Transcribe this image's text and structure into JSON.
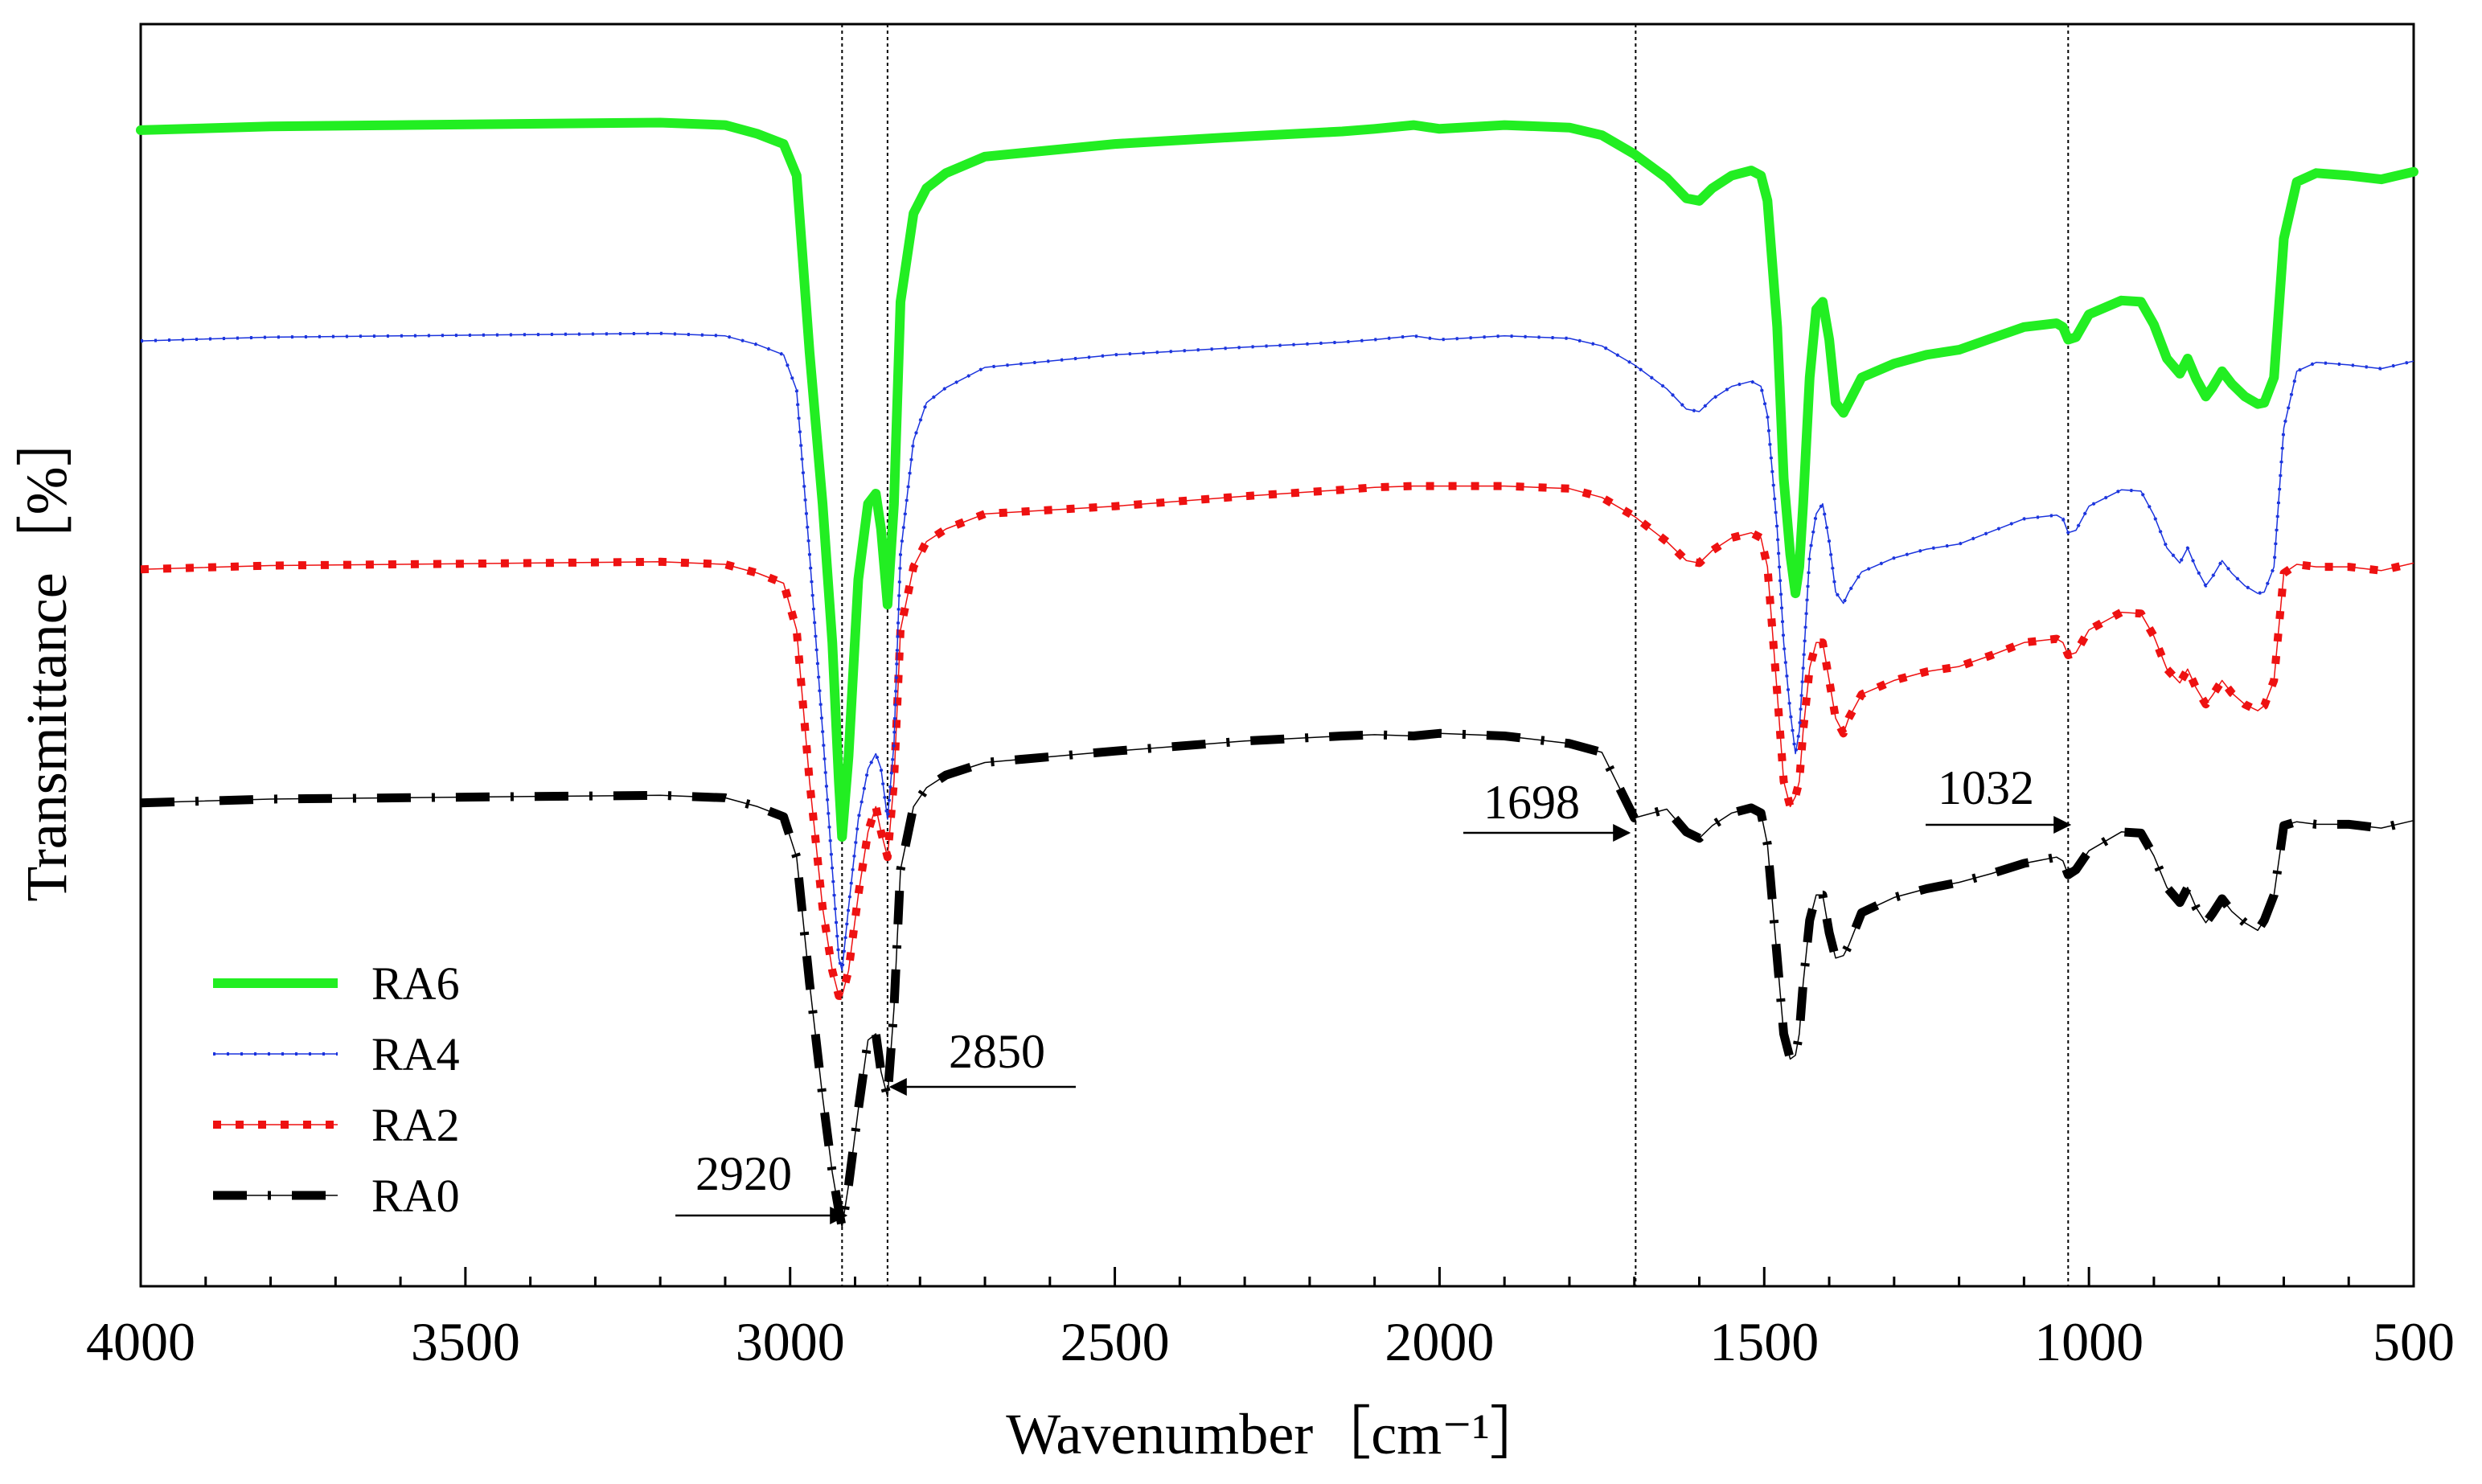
{
  "chart_data": {
    "type": "line",
    "title": "",
    "xlabel": "Wavenumber［cm⁻¹］",
    "ylabel": "Transmittance［%］",
    "xlim": [
      4000,
      500
    ],
    "x_reversed": true,
    "ylim": [
      0,
      1
    ],
    "y_ticks_labeled": false,
    "x_ticks": [
      4000,
      3500,
      3000,
      2500,
      2000,
      1500,
      1000,
      500
    ],
    "x_tick_labels": [
      "4000",
      "3500",
      "3000",
      "2500",
      "2000",
      "1500",
      "1000",
      "500"
    ],
    "grid": false,
    "legend_position": "bottom-left",
    "series": [
      {
        "name": "RA6",
        "color": "#22ee22",
        "style": "solid",
        "x": [
          4000,
          3800,
          3600,
          3400,
          3200,
          3100,
          3050,
          3010,
          2990,
          2970,
          2950,
          2935,
          2925,
          2920,
          2910,
          2895,
          2880,
          2868,
          2860,
          2850,
          2840,
          2830,
          2810,
          2790,
          2760,
          2700,
          2500,
          2300,
          2150,
          2100,
          2040,
          2000,
          1900,
          1800,
          1750,
          1700,
          1650,
          1620,
          1600,
          1580,
          1550,
          1520,
          1505,
          1495,
          1480,
          1470,
          1460,
          1452,
          1446,
          1440,
          1430,
          1420,
          1410,
          1400,
          1390,
          1378,
          1370,
          1350,
          1300,
          1250,
          1200,
          1150,
          1100,
          1050,
          1040,
          1032,
          1020,
          1000,
          950,
          920,
          900,
          880,
          860,
          848,
          835,
          820,
          810,
          795,
          780,
          760,
          740,
          730,
          715,
          700,
          680,
          650,
          600,
          550,
          500
        ],
        "y": [
          0.916,
          0.919,
          0.92,
          0.921,
          0.922,
          0.92,
          0.913,
          0.905,
          0.88,
          0.74,
          0.62,
          0.51,
          0.4,
          0.356,
          0.42,
          0.56,
          0.62,
          0.628,
          0.6,
          0.54,
          0.62,
          0.78,
          0.85,
          0.87,
          0.882,
          0.895,
          0.905,
          0.911,
          0.915,
          0.917,
          0.92,
          0.917,
          0.92,
          0.918,
          0.912,
          0.897,
          0.878,
          0.862,
          0.86,
          0.87,
          0.88,
          0.884,
          0.88,
          0.86,
          0.76,
          0.64,
          0.58,
          0.549,
          0.57,
          0.62,
          0.72,
          0.774,
          0.78,
          0.75,
          0.7,
          0.692,
          0.7,
          0.72,
          0.731,
          0.738,
          0.742,
          0.751,
          0.76,
          0.763,
          0.76,
          0.75,
          0.752,
          0.77,
          0.781,
          0.78,
          0.762,
          0.735,
          0.723,
          0.735,
          0.719,
          0.705,
          0.712,
          0.725,
          0.715,
          0.705,
          0.699,
          0.7,
          0.72,
          0.83,
          0.875,
          0.882,
          0.88,
          0.877,
          0.883
        ]
      },
      {
        "name": "RA4",
        "color": "#1a33dd",
        "style": "dotted-tick",
        "x": [
          4000,
          3800,
          3600,
          3400,
          3200,
          3100,
          3050,
          3010,
          2990,
          2970,
          2950,
          2935,
          2925,
          2920,
          2910,
          2895,
          2880,
          2868,
          2860,
          2850,
          2840,
          2830,
          2810,
          2790,
          2760,
          2700,
          2500,
          2300,
          2150,
          2100,
          2040,
          2000,
          1900,
          1800,
          1750,
          1700,
          1650,
          1620,
          1600,
          1580,
          1550,
          1520,
          1505,
          1495,
          1480,
          1470,
          1460,
          1452,
          1446,
          1440,
          1430,
          1420,
          1410,
          1400,
          1390,
          1378,
          1370,
          1350,
          1300,
          1250,
          1200,
          1150,
          1100,
          1050,
          1040,
          1032,
          1020,
          1000,
          950,
          920,
          900,
          880,
          860,
          848,
          835,
          820,
          810,
          795,
          780,
          760,
          740,
          730,
          715,
          700,
          680,
          650,
          600,
          550,
          500
        ],
        "y": [
          0.749,
          0.752,
          0.753,
          0.754,
          0.755,
          0.753,
          0.746,
          0.738,
          0.71,
          0.58,
          0.44,
          0.33,
          0.26,
          0.25,
          0.3,
          0.37,
          0.41,
          0.422,
          0.41,
          0.37,
          0.43,
          0.58,
          0.67,
          0.7,
          0.712,
          0.728,
          0.738,
          0.744,
          0.748,
          0.75,
          0.753,
          0.75,
          0.753,
          0.751,
          0.745,
          0.73,
          0.711,
          0.695,
          0.693,
          0.703,
          0.713,
          0.717,
          0.713,
          0.69,
          0.6,
          0.51,
          0.455,
          0.422,
          0.44,
          0.49,
          0.58,
          0.612,
          0.62,
          0.59,
          0.55,
          0.541,
          0.55,
          0.566,
          0.577,
          0.584,
          0.588,
          0.598,
          0.608,
          0.611,
          0.608,
          0.597,
          0.599,
          0.618,
          0.631,
          0.63,
          0.611,
          0.585,
          0.573,
          0.585,
          0.569,
          0.555,
          0.562,
          0.575,
          0.565,
          0.555,
          0.549,
          0.55,
          0.57,
          0.68,
          0.725,
          0.732,
          0.73,
          0.727,
          0.733
        ]
      },
      {
        "name": "RA2",
        "color": "#ee1111",
        "style": "square-dot",
        "x": [
          4000,
          3800,
          3600,
          3400,
          3200,
          3100,
          3050,
          3010,
          2990,
          2970,
          2950,
          2935,
          2925,
          2920,
          2910,
          2895,
          2880,
          2868,
          2860,
          2850,
          2840,
          2830,
          2810,
          2790,
          2760,
          2700,
          2500,
          2300,
          2150,
          2100,
          2040,
          2000,
          1900,
          1800,
          1750,
          1700,
          1650,
          1620,
          1600,
          1580,
          1550,
          1520,
          1505,
          1495,
          1480,
          1470,
          1460,
          1452,
          1446,
          1440,
          1430,
          1420,
          1410,
          1400,
          1390,
          1378,
          1370,
          1350,
          1300,
          1250,
          1200,
          1150,
          1100,
          1050,
          1040,
          1032,
          1020,
          1000,
          950,
          920,
          900,
          880,
          860,
          848,
          835,
          820,
          810,
          795,
          780,
          760,
          740,
          730,
          715,
          700,
          680,
          650,
          600,
          550,
          500
        ],
        "y": [
          0.568,
          0.571,
          0.572,
          0.573,
          0.574,
          0.572,
          0.565,
          0.557,
          0.52,
          0.4,
          0.3,
          0.25,
          0.23,
          0.23,
          0.25,
          0.31,
          0.36,
          0.38,
          0.36,
          0.34,
          0.4,
          0.52,
          0.57,
          0.59,
          0.6,
          0.612,
          0.618,
          0.626,
          0.631,
          0.633,
          0.634,
          0.634,
          0.634,
          0.632,
          0.625,
          0.61,
          0.59,
          0.575,
          0.573,
          0.583,
          0.593,
          0.597,
          0.593,
          0.57,
          0.47,
          0.4,
          0.38,
          0.388,
          0.4,
          0.44,
          0.49,
          0.51,
          0.51,
          0.48,
          0.45,
          0.438,
          0.45,
          0.469,
          0.48,
          0.487,
          0.491,
          0.5,
          0.51,
          0.513,
          0.51,
          0.5,
          0.502,
          0.52,
          0.534,
          0.533,
          0.515,
          0.489,
          0.478,
          0.489,
          0.474,
          0.461,
          0.468,
          0.48,
          0.47,
          0.461,
          0.456,
          0.46,
          0.48,
          0.565,
          0.572,
          0.57,
          0.57,
          0.567,
          0.573
        ]
      },
      {
        "name": "RA0",
        "color": "#000000",
        "style": "dash-dot",
        "x": [
          4000,
          3800,
          3600,
          3400,
          3200,
          3100,
          3050,
          3010,
          2990,
          2970,
          2950,
          2935,
          2925,
          2920,
          2910,
          2895,
          2880,
          2868,
          2860,
          2850,
          2840,
          2830,
          2810,
          2790,
          2760,
          2700,
          2500,
          2300,
          2150,
          2100,
          2040,
          2000,
          1900,
          1800,
          1750,
          1700,
          1650,
          1620,
          1600,
          1580,
          1550,
          1520,
          1505,
          1495,
          1480,
          1470,
          1460,
          1452,
          1446,
          1440,
          1430,
          1420,
          1410,
          1400,
          1390,
          1378,
          1370,
          1350,
          1300,
          1250,
          1200,
          1150,
          1100,
          1050,
          1040,
          1032,
          1020,
          1000,
          950,
          920,
          900,
          880,
          860,
          848,
          835,
          820,
          810,
          795,
          780,
          760,
          740,
          730,
          715,
          700,
          680,
          650,
          600,
          550,
          500
        ],
        "y": [
          0.383,
          0.386,
          0.387,
          0.388,
          0.389,
          0.387,
          0.38,
          0.372,
          0.34,
          0.24,
          0.15,
          0.09,
          0.06,
          0.047,
          0.08,
          0.14,
          0.195,
          0.2,
          0.17,
          0.15,
          0.22,
          0.33,
          0.38,
          0.395,
          0.405,
          0.415,
          0.424,
          0.432,
          0.436,
          0.437,
          0.436,
          0.438,
          0.436,
          0.43,
          0.423,
          0.371,
          0.378,
          0.36,
          0.355,
          0.365,
          0.375,
          0.379,
          0.375,
          0.35,
          0.26,
          0.2,
          0.18,
          0.183,
          0.2,
          0.24,
          0.29,
          0.31,
          0.31,
          0.28,
          0.26,
          0.262,
          0.27,
          0.296,
          0.308,
          0.315,
          0.32,
          0.327,
          0.335,
          0.34,
          0.337,
          0.326,
          0.33,
          0.345,
          0.36,
          0.359,
          0.341,
          0.316,
          0.304,
          0.316,
          0.3,
          0.288,
          0.295,
          0.307,
          0.297,
          0.288,
          0.282,
          0.29,
          0.31,
          0.365,
          0.368,
          0.366,
          0.366,
          0.363,
          0.369
        ]
      }
    ],
    "reference_lines_x": [
      2920,
      2850,
      1698,
      1032
    ],
    "annotations": [
      {
        "text": "2920",
        "x": 2920,
        "pointer": "arrow-right"
      },
      {
        "text": "2850",
        "x": 2850,
        "pointer": "arrow-left"
      },
      {
        "text": "1698",
        "x": 1698,
        "pointer": "arrow-right"
      },
      {
        "text": "1032",
        "x": 1032,
        "pointer": "arrow-right"
      }
    ]
  }
}
